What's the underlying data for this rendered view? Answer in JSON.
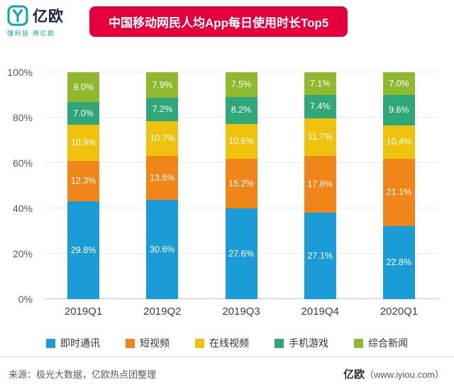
{
  "header": {
    "logo": {
      "name": "亿欧",
      "tagline": "懂科技 用亿欧",
      "accent_color": "#0aa7a7"
    },
    "banner_color": "#e4003c"
  },
  "chart_data": {
    "type": "bar",
    "stacked": true,
    "normalized_to_100": true,
    "title": "中国移动网民人均App每日使用时长Top5",
    "categories": [
      "2019Q1",
      "2019Q2",
      "2019Q3",
      "2019Q4",
      "2020Q1"
    ],
    "series": [
      {
        "name": "即时通讯",
        "color": "#1c9cd6",
        "values": [
          29.8,
          30.6,
          27.6,
          27.1,
          22.8
        ]
      },
      {
        "name": "短视频",
        "color": "#f08519",
        "values": [
          12.3,
          13.5,
          15.2,
          17.8,
          21.1
        ]
      },
      {
        "name": "在线视频",
        "color": "#efc20e",
        "values": [
          10.9,
          10.7,
          10.6,
          11.7,
          10.4
        ]
      },
      {
        "name": "手机游戏",
        "color": "#2fa779",
        "values": [
          7.0,
          7.2,
          8.2,
          7.4,
          9.6
        ]
      },
      {
        "name": "综合新闻",
        "color": "#8fba2f",
        "values": [
          9.0,
          7.9,
          7.5,
          7.1,
          7.0
        ]
      }
    ],
    "y_ticks": [
      "0%",
      "20%",
      "40%",
      "60%",
      "80%",
      "100%"
    ],
    "ylim": [
      0,
      100
    ],
    "xlabel": "",
    "ylabel": "",
    "grid": true,
    "legend_position": "bottom",
    "label_format": "percent_one_decimal"
  },
  "footer": {
    "source": "来源：极光大数据，亿欧热点团整理",
    "brand_name": "亿欧",
    "brand_url": "（www.iyiou.com）"
  }
}
